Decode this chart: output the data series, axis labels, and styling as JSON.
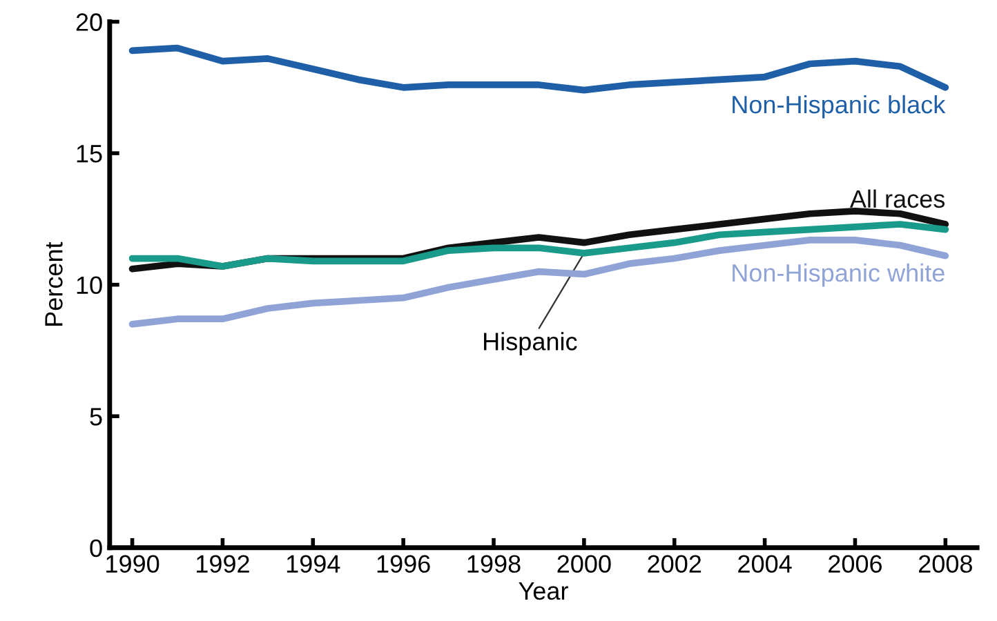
{
  "chart_data": {
    "type": "line",
    "xlabel": "Year",
    "ylabel": "Percent",
    "x": [
      1990,
      1991,
      1992,
      1993,
      1994,
      1995,
      1996,
      1997,
      1998,
      1999,
      2000,
      2001,
      2002,
      2003,
      2004,
      2005,
      2006,
      2007,
      2008
    ],
    "xlim": [
      1989.5,
      2008.7
    ],
    "xticks": [
      1990,
      1992,
      1994,
      1996,
      1998,
      2000,
      2002,
      2004,
      2006,
      2008
    ],
    "ylim": [
      0,
      20
    ],
    "yticks": [
      0,
      5,
      10,
      15,
      20
    ],
    "grid": false,
    "legend": false,
    "marker": "none",
    "line_style": "solid",
    "series": [
      {
        "name": "Non-Hispanic black",
        "color": "#1f5fa8",
        "values": [
          18.9,
          19.0,
          18.5,
          18.6,
          18.2,
          17.8,
          17.5,
          17.6,
          17.6,
          17.6,
          17.4,
          17.6,
          17.7,
          17.8,
          17.9,
          18.4,
          18.5,
          18.3,
          17.5
        ]
      },
      {
        "name": "Non-Hispanic white",
        "color": "#8fa3d6",
        "values": [
          8.5,
          8.7,
          8.7,
          9.1,
          9.3,
          9.4,
          9.5,
          9.9,
          10.2,
          10.5,
          10.4,
          10.8,
          11.0,
          11.3,
          11.5,
          11.7,
          11.7,
          11.5,
          11.1
        ]
      },
      {
        "name": "Hispanic",
        "color": "#1a9a8a",
        "values": [
          11.0,
          11.0,
          10.7,
          11.0,
          10.9,
          10.9,
          10.9,
          11.3,
          11.4,
          11.4,
          11.2,
          11.4,
          11.6,
          11.9,
          12.0,
          12.1,
          12.2,
          12.3,
          12.1
        ]
      },
      {
        "name": "All races",
        "color": "#111111",
        "values": [
          10.6,
          10.8,
          10.7,
          11.0,
          11.0,
          11.0,
          11.0,
          11.4,
          11.6,
          11.8,
          11.6,
          11.9,
          12.1,
          12.3,
          12.5,
          12.7,
          12.8,
          12.7,
          12.3
        ]
      }
    ]
  }
}
